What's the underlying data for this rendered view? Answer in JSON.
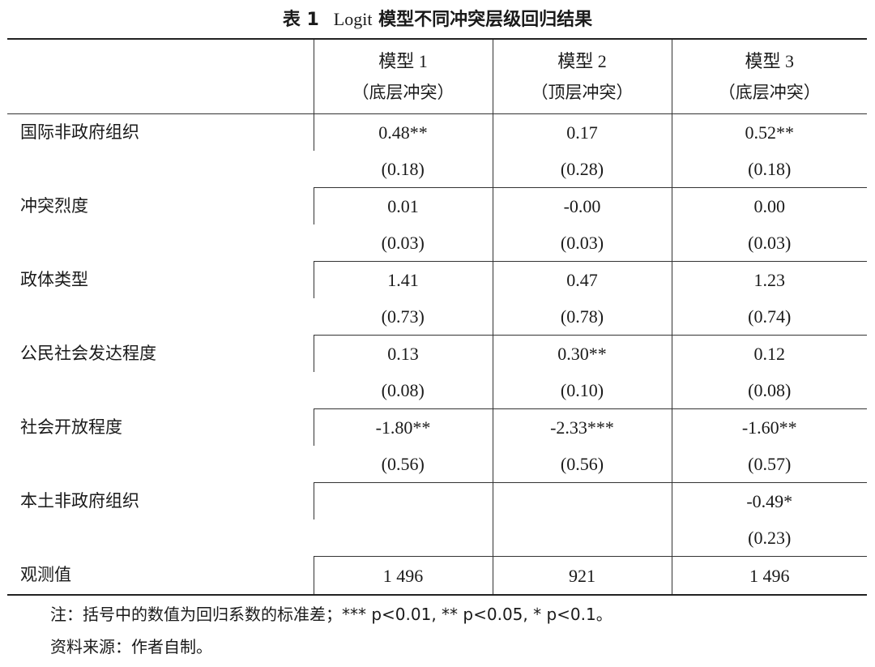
{
  "table_title": {
    "number": "表 1",
    "en": "Logit",
    "cn": "模型不同冲突层级回归结果"
  },
  "header": {
    "stub": "",
    "models": [
      {
        "name": "模型 1",
        "sub": "（底层冲突）"
      },
      {
        "name": "模型 2",
        "sub": "（顶层冲突）"
      },
      {
        "name": "模型 3",
        "sub": "（底层冲突）"
      }
    ]
  },
  "rows": [
    {
      "label": "国际非政府组织",
      "coef": [
        "0.48**",
        "0.17",
        "0.52**"
      ],
      "se": [
        "(0.18)",
        "(0.28)",
        "(0.18)"
      ]
    },
    {
      "label": "冲突烈度",
      "coef": [
        "0.01",
        "-0.00",
        "0.00"
      ],
      "se": [
        "(0.03)",
        "(0.03)",
        "(0.03)"
      ]
    },
    {
      "label": "政体类型",
      "coef": [
        "1.41",
        "0.47",
        "1.23"
      ],
      "se": [
        "(0.73)",
        "(0.78)",
        "(0.74)"
      ]
    },
    {
      "label": "公民社会发达程度",
      "coef": [
        "0.13",
        "0.30**",
        "0.12"
      ],
      "se": [
        "(0.08)",
        "(0.10)",
        "(0.08)"
      ]
    },
    {
      "label": "社会开放程度",
      "coef": [
        "-1.80**",
        "-2.33***",
        "-1.60**"
      ],
      "se": [
        "(0.56)",
        "(0.56)",
        "(0.57)"
      ]
    },
    {
      "label": "本土非政府组织",
      "coef": [
        "",
        "",
        "-0.49*"
      ],
      "se": [
        "",
        "",
        "(0.23)"
      ]
    }
  ],
  "observations": {
    "label": "观测值",
    "values": [
      "1 496",
      "921",
      "1 496"
    ]
  },
  "notes": {
    "note": "注：括号中的数值为回归系数的标准差；*** p<0.01, ** p<0.05, * p<0.1。",
    "source": "资料来源：作者自制。"
  }
}
